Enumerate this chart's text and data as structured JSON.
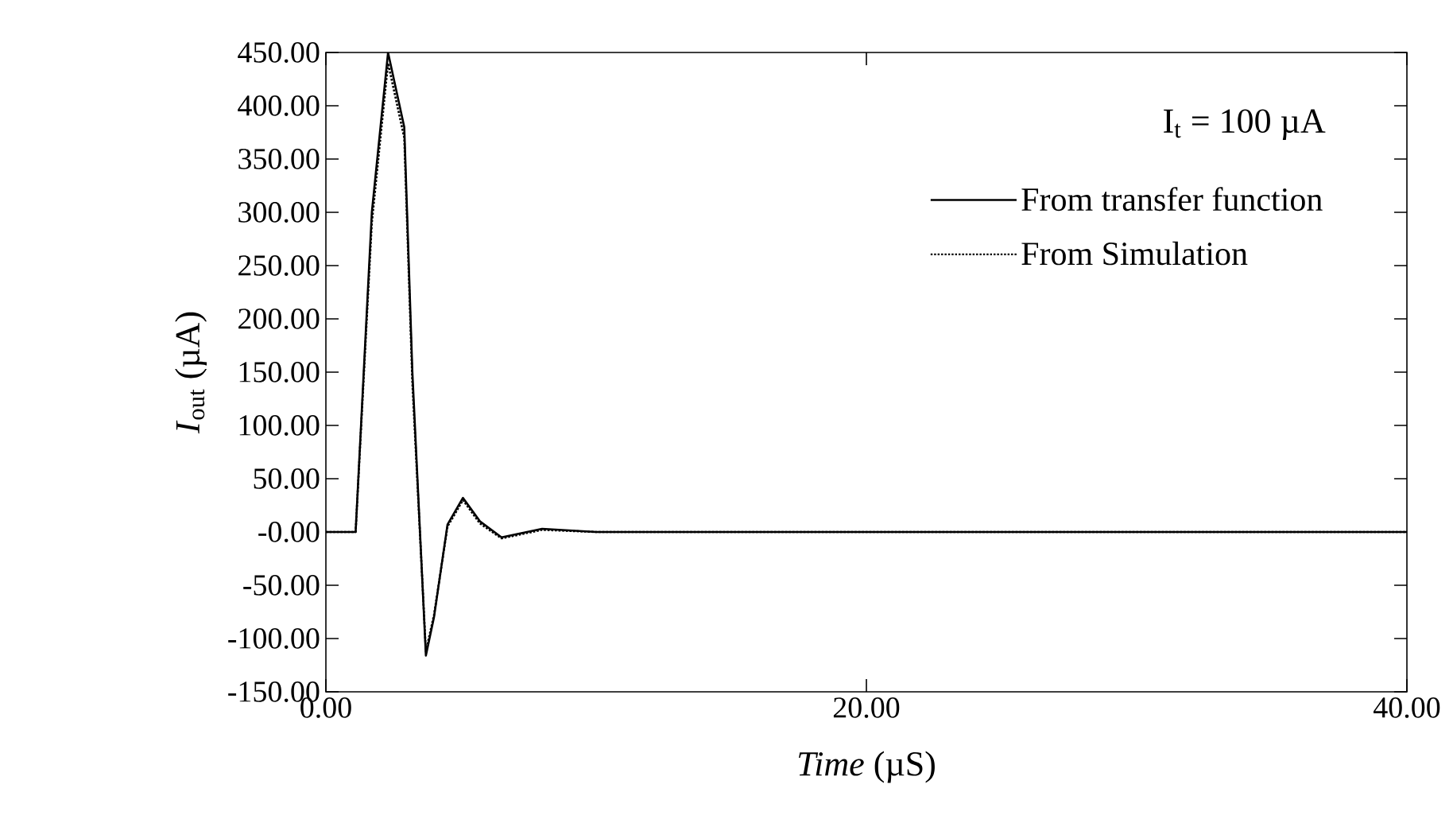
{
  "chart_data": {
    "type": "line",
    "xlabel": "*Time* (µS)",
    "ylabel": "*I*$_{out}$ (µA)",
    "annotations": [
      "I$_{t}$ = 100 µA"
    ],
    "x": [
      0,
      1.1,
      1.7,
      2.3,
      2.9,
      3.2,
      3.7,
      4.0,
      4.5,
      5.07,
      5.7,
      6.5,
      8.0,
      10.0,
      20.0,
      30.0,
      40.0
    ],
    "series": [
      {
        "name": "From transfer function",
        "color": "#000000",
        "line_style": "solid",
        "values": [
          0,
          0,
          300,
          450,
          380,
          150,
          -116,
          -80,
          7,
          32,
          10,
          -5,
          3,
          0,
          0,
          0,
          0
        ]
      },
      {
        "name": "From Simulation",
        "color": "#000000",
        "line_style": "dotted",
        "values": [
          0,
          0,
          290,
          440,
          370,
          140,
          -112,
          -78,
          5,
          30,
          8,
          -6,
          2,
          0,
          0,
          0,
          0
        ]
      }
    ],
    "xlim": [
      0,
      40
    ],
    "ylim": [
      -150,
      450
    ],
    "xticks": [
      {
        "value": 0,
        "label": "0.00"
      },
      {
        "value": 20,
        "label": "20.00"
      },
      {
        "value": 40,
        "label": "40.00"
      }
    ],
    "yticks": [
      {
        "value": 450,
        "label": "450.00"
      },
      {
        "value": 400,
        "label": "400.00"
      },
      {
        "value": 350,
        "label": "350.00"
      },
      {
        "value": 300,
        "label": "300.00"
      },
      {
        "value": 250,
        "label": "250.00"
      },
      {
        "value": 200,
        "label": "200.00"
      },
      {
        "value": 150,
        "label": "150.00"
      },
      {
        "value": 100,
        "label": "100.00"
      },
      {
        "value": 50,
        "label": "50.00"
      },
      {
        "value": 0,
        "label": "-0.00"
      },
      {
        "value": -50,
        "label": "-50.00"
      },
      {
        "value": -100,
        "label": "-100.00"
      },
      {
        "value": -150,
        "label": "-150.00"
      }
    ],
    "legend": "top right",
    "grid": false,
    "marker": "none"
  }
}
